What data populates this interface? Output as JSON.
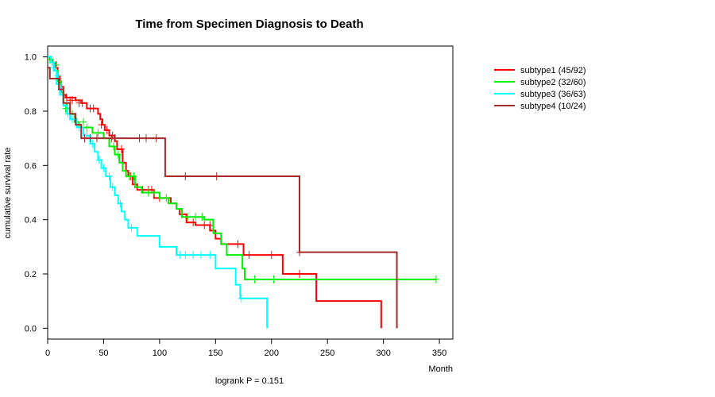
{
  "chart_data": {
    "type": "line",
    "title": "Time from Specimen Diagnosis to Death",
    "xlabel": "Month",
    "ylabel": "cumulative survival rate",
    "xlim": [
      0,
      362
    ],
    "ylim": [
      -0.04,
      1.04
    ],
    "xticks": [
      0,
      50,
      100,
      150,
      200,
      250,
      300,
      350
    ],
    "yticks": [
      0.0,
      0.2,
      0.4,
      0.6,
      0.8,
      1.0
    ],
    "xtick_labels": [
      "0",
      "50",
      "100",
      "150",
      "200",
      "250",
      "300",
      "350"
    ],
    "ytick_labels": [
      "0.0",
      "0.2",
      "0.4",
      "0.6",
      "0.8",
      "1.0"
    ],
    "annotation": "logrank P = 0.151",
    "legend_position": "top-right, outside plot",
    "series": [
      {
        "name": "subtype1 (45/92)",
        "color": "#ff0000",
        "steps": [
          [
            0,
            1.0
          ],
          [
            2,
            0.99
          ],
          [
            4,
            0.98
          ],
          [
            7,
            0.96
          ],
          [
            9,
            0.93
          ],
          [
            11,
            0.89
          ],
          [
            14,
            0.86
          ],
          [
            16,
            0.85
          ],
          [
            25,
            0.84
          ],
          [
            30,
            0.83
          ],
          [
            35,
            0.81
          ],
          [
            45,
            0.79
          ],
          [
            47,
            0.77
          ],
          [
            49,
            0.75
          ],
          [
            51,
            0.73
          ],
          [
            55,
            0.71
          ],
          [
            60,
            0.69
          ],
          [
            62,
            0.66
          ],
          [
            67,
            0.61
          ],
          [
            70,
            0.58
          ],
          [
            72,
            0.56
          ],
          [
            76,
            0.53
          ],
          [
            80,
            0.51
          ],
          [
            95,
            0.48
          ],
          [
            110,
            0.46
          ],
          [
            115,
            0.44
          ],
          [
            118,
            0.42
          ],
          [
            124,
            0.39
          ],
          [
            132,
            0.38
          ],
          [
            145,
            0.36
          ],
          [
            150,
            0.33
          ],
          [
            155,
            0.31
          ],
          [
            175,
            0.27
          ],
          [
            210,
            0.2
          ],
          [
            240,
            0.1
          ],
          [
            298,
            0.0
          ]
        ],
        "end": 298,
        "censor": [
          [
            17,
            0.85
          ],
          [
            20,
            0.84
          ],
          [
            22,
            0.84
          ],
          [
            28,
            0.83
          ],
          [
            31,
            0.83
          ],
          [
            38,
            0.81
          ],
          [
            41,
            0.81
          ],
          [
            48,
            0.75
          ],
          [
            53,
            0.73
          ],
          [
            58,
            0.71
          ],
          [
            66,
            0.66
          ],
          [
            74,
            0.56
          ],
          [
            78,
            0.53
          ],
          [
            85,
            0.51
          ],
          [
            90,
            0.51
          ],
          [
            93,
            0.51
          ],
          [
            100,
            0.48
          ],
          [
            120,
            0.42
          ],
          [
            130,
            0.39
          ],
          [
            140,
            0.38
          ],
          [
            145,
            0.38
          ],
          [
            170,
            0.31
          ],
          [
            180,
            0.27
          ],
          [
            200,
            0.27
          ],
          [
            225,
            0.2
          ]
        ]
      },
      {
        "name": "subtype2 (32/60)",
        "color": "#00ee00",
        "steps": [
          [
            0,
            1.0
          ],
          [
            3,
            0.98
          ],
          [
            6,
            0.95
          ],
          [
            9,
            0.91
          ],
          [
            12,
            0.87
          ],
          [
            14,
            0.83
          ],
          [
            17,
            0.81
          ],
          [
            20,
            0.79
          ],
          [
            24,
            0.76
          ],
          [
            28,
            0.74
          ],
          [
            40,
            0.72
          ],
          [
            50,
            0.7
          ],
          [
            55,
            0.67
          ],
          [
            60,
            0.64
          ],
          [
            64,
            0.61
          ],
          [
            67,
            0.58
          ],
          [
            70,
            0.56
          ],
          [
            78,
            0.52
          ],
          [
            84,
            0.5
          ],
          [
            100,
            0.48
          ],
          [
            108,
            0.46
          ],
          [
            115,
            0.44
          ],
          [
            120,
            0.41
          ],
          [
            140,
            0.4
          ],
          [
            148,
            0.35
          ],
          [
            155,
            0.31
          ],
          [
            160,
            0.27
          ],
          [
            174,
            0.22
          ],
          [
            176,
            0.18
          ],
          [
            347,
            0.18
          ]
        ],
        "end": 347,
        "censor": [
          [
            2,
            0.99
          ],
          [
            5,
            0.98
          ],
          [
            8,
            0.97
          ],
          [
            16,
            0.81
          ],
          [
            22,
            0.79
          ],
          [
            26,
            0.76
          ],
          [
            32,
            0.76
          ],
          [
            35,
            0.74
          ],
          [
            45,
            0.72
          ],
          [
            59,
            0.67
          ],
          [
            63,
            0.64
          ],
          [
            73,
            0.56
          ],
          [
            77,
            0.56
          ],
          [
            90,
            0.5
          ],
          [
            95,
            0.5
          ],
          [
            106,
            0.48
          ],
          [
            125,
            0.41
          ],
          [
            132,
            0.41
          ],
          [
            138,
            0.41
          ],
          [
            185,
            0.18
          ],
          [
            202,
            0.18
          ],
          [
            347,
            0.18
          ]
        ]
      },
      {
        "name": "subtype3 (36/63)",
        "color": "#00ffff",
        "steps": [
          [
            0,
            1.0
          ],
          [
            3,
            0.98
          ],
          [
            6,
            0.95
          ],
          [
            8,
            0.9
          ],
          [
            11,
            0.86
          ],
          [
            14,
            0.82
          ],
          [
            17,
            0.79
          ],
          [
            20,
            0.77
          ],
          [
            26,
            0.74
          ],
          [
            32,
            0.71
          ],
          [
            38,
            0.68
          ],
          [
            42,
            0.65
          ],
          [
            45,
            0.62
          ],
          [
            48,
            0.59
          ],
          [
            52,
            0.56
          ],
          [
            56,
            0.52
          ],
          [
            60,
            0.49
          ],
          [
            63,
            0.46
          ],
          [
            66,
            0.43
          ],
          [
            69,
            0.4
          ],
          [
            72,
            0.37
          ],
          [
            80,
            0.34
          ],
          [
            100,
            0.3
          ],
          [
            115,
            0.27
          ],
          [
            150,
            0.22
          ],
          [
            168,
            0.16
          ],
          [
            172,
            0.11
          ],
          [
            196,
            0.0
          ]
        ],
        "end": 196,
        "censor": [
          [
            4,
            0.98
          ],
          [
            5,
            0.96
          ],
          [
            9,
            0.93
          ],
          [
            12,
            0.88
          ],
          [
            18,
            0.79
          ],
          [
            22,
            0.77
          ],
          [
            28,
            0.74
          ],
          [
            35,
            0.71
          ],
          [
            40,
            0.68
          ],
          [
            46,
            0.62
          ],
          [
            50,
            0.59
          ],
          [
            55,
            0.56
          ],
          [
            58,
            0.52
          ],
          [
            65,
            0.46
          ],
          [
            75,
            0.37
          ],
          [
            118,
            0.27
          ],
          [
            123,
            0.27
          ],
          [
            130,
            0.27
          ],
          [
            137,
            0.27
          ],
          [
            145,
            0.27
          ],
          [
            173,
            0.11
          ]
        ]
      },
      {
        "name": "subtype4 (10/24)",
        "color": "#a52a2a",
        "steps": [
          [
            0,
            0.96
          ],
          [
            2,
            0.92
          ],
          [
            10,
            0.88
          ],
          [
            14,
            0.83
          ],
          [
            20,
            0.79
          ],
          [
            25,
            0.75
          ],
          [
            30,
            0.7
          ],
          [
            105,
            0.56
          ],
          [
            225,
            0.28
          ],
          [
            312,
            0.0
          ]
        ],
        "end": 312,
        "censor": [
          [
            33,
            0.7
          ],
          [
            38,
            0.7
          ],
          [
            44,
            0.7
          ],
          [
            57,
            0.7
          ],
          [
            60,
            0.7
          ],
          [
            82,
            0.7
          ],
          [
            88,
            0.7
          ],
          [
            97,
            0.7
          ],
          [
            123,
            0.56
          ],
          [
            151,
            0.56
          ],
          [
            225,
            0.28
          ]
        ]
      }
    ]
  }
}
